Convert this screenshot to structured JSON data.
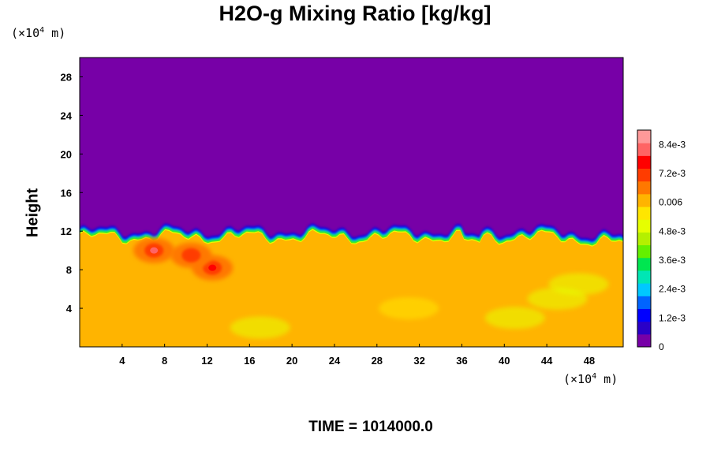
{
  "chart_data": {
    "type": "heatmap",
    "title": "H2O-g Mixing Ratio [kg/kg]",
    "ylabel": "Height",
    "y_unit_base": "(×10",
    "y_unit_exp": "4",
    "y_unit_tail": " m)",
    "x_unit_base": "(×10",
    "x_unit_exp": "4",
    "x_unit_tail": " m)",
    "xlim": [
      0,
      51.2
    ],
    "ylim": [
      0,
      30
    ],
    "x_ticks": [
      "4",
      "8",
      "12",
      "16",
      "20",
      "24",
      "28",
      "32",
      "36",
      "40",
      "44",
      "48"
    ],
    "x_tick_values": [
      4,
      8,
      12,
      16,
      20,
      24,
      28,
      32,
      36,
      40,
      44,
      48
    ],
    "y_ticks": [
      "4",
      "8",
      "12",
      "16",
      "20",
      "24",
      "28"
    ],
    "y_tick_values": [
      4,
      8,
      12,
      16,
      20,
      24,
      28
    ],
    "colorbar": {
      "range": [
        0,
        0.009
      ],
      "labels": [
        "0",
        "1.2e-3",
        "2.4e-3",
        "3.6e-3",
        "4.8e-3",
        "0.006",
        "7.2e-3",
        "8.4e-3"
      ],
      "label_values": [
        0,
        0.0012,
        0.0024,
        0.0036,
        0.0048,
        0.006,
        0.0072,
        0.0084
      ],
      "colors": [
        "#7700a7",
        "#2a00c8",
        "#0000ff",
        "#0064ff",
        "#00c8ff",
        "#00e6b4",
        "#00e650",
        "#64f000",
        "#b4f000",
        "#e6ff00",
        "#ffe600",
        "#ffb400",
        "#ff7800",
        "#ff3c00",
        "#ff0000",
        "#ff6464",
        "#ff9999"
      ]
    },
    "field": {
      "upper_value": 0.0,
      "lower_value": 0.006,
      "interface_height_approx": 11.5,
      "moist_patches": [
        {
          "x": 7.0,
          "y": 10.0,
          "value": 0.0084
        },
        {
          "x": 12.5,
          "y": 8.2,
          "value": 0.0078
        },
        {
          "x": 10.5,
          "y": 9.5,
          "value": 0.007
        }
      ]
    }
  },
  "footer": {
    "time_label": "TIME =",
    "time_value": "1014000.0"
  }
}
